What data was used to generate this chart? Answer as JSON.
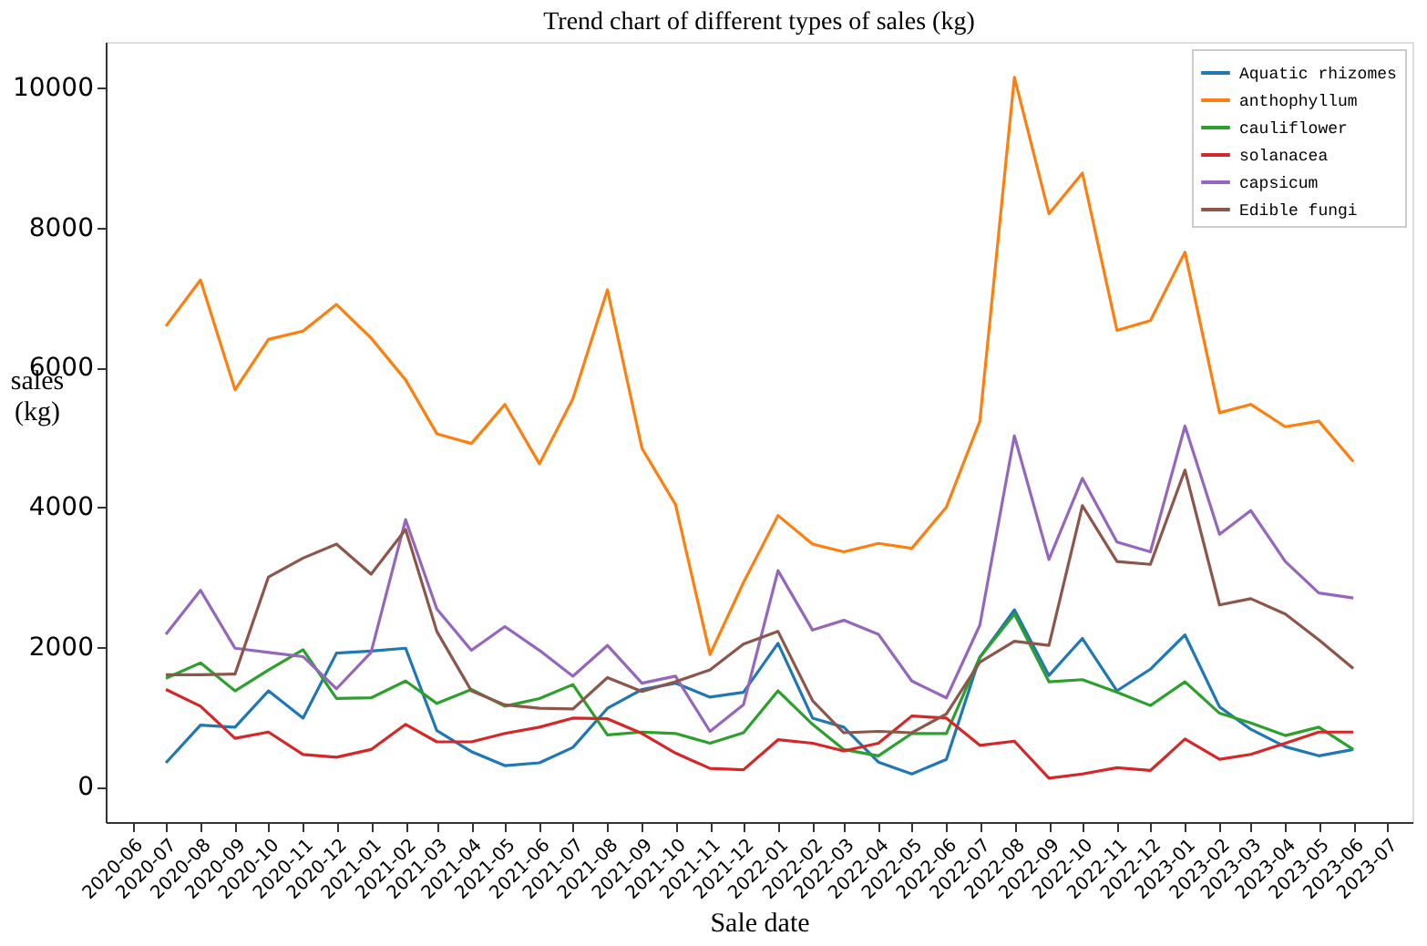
{
  "chart_data": {
    "type": "line",
    "title": "Trend chart of different types of sales (kg)",
    "xlabel": "Sale date",
    "ylabel": "sales\n(kg)",
    "x": [
      "2020-07",
      "2020-08",
      "2020-09",
      "2020-10",
      "2020-11",
      "2020-12",
      "2021-01",
      "2021-02",
      "2021-03",
      "2021-04",
      "2021-05",
      "2021-06",
      "2021-07",
      "2021-08",
      "2021-09",
      "2021-10",
      "2021-11",
      "2021-12",
      "2022-01",
      "2022-02",
      "2022-03",
      "2022-04",
      "2022-05",
      "2022-06",
      "2022-07",
      "2022-08",
      "2022-09",
      "2022-10",
      "2022-11",
      "2022-12",
      "2023-01",
      "2023-02",
      "2023-03",
      "2023-04",
      "2023-05",
      "2023-06"
    ],
    "xlim": [
      "2020-05-08",
      "2023-07-24"
    ],
    "xticks": [
      "2020-06",
      "2020-07",
      "2020-08",
      "2020-09",
      "2020-10",
      "2020-11",
      "2020-12",
      "2021-01",
      "2021-02",
      "2021-03",
      "2021-04",
      "2021-05",
      "2021-06",
      "2021-07",
      "2021-08",
      "2021-09",
      "2021-10",
      "2021-11",
      "2021-12",
      "2022-01",
      "2022-02",
      "2022-03",
      "2022-04",
      "2022-05",
      "2022-06",
      "2022-07",
      "2022-08",
      "2022-09",
      "2022-10",
      "2022-11",
      "2022-12",
      "2023-01",
      "2023-02",
      "2023-03",
      "2023-04",
      "2023-05",
      "2023-06",
      "2023-07"
    ],
    "ylim": [
      -508,
      10658
    ],
    "yticks": [
      0,
      2000,
      4000,
      6000,
      8000,
      10000
    ],
    "grid": false,
    "legend": "top right",
    "marker": "none",
    "line_style": "solid",
    "series": [
      {
        "name": "Aquatic rhizomes",
        "color": "#1f77b4",
        "values": [
          340,
          880,
          850,
          1370,
          980,
          1910,
          1940,
          1980,
          800,
          500,
          300,
          340,
          560,
          1120,
          1390,
          1480,
          1280,
          1350,
          2050,
          980,
          850,
          350,
          180,
          390,
          1850,
          2530,
          1590,
          2120,
          1370,
          1680,
          2170,
          1140,
          820,
          570,
          440,
          530
        ]
      },
      {
        "name": "anthophyllum",
        "color": "#ff7f0e",
        "values": [
          6590,
          7250,
          5680,
          6400,
          6520,
          6900,
          6420,
          5820,
          5050,
          4910,
          5470,
          4620,
          5550,
          7110,
          4840,
          4040,
          1890,
          2920,
          3880,
          3470,
          3360,
          3480,
          3410,
          4000,
          5230,
          10150,
          8200,
          8780,
          6530,
          6670,
          7650,
          5350,
          5470,
          5150,
          5230,
          4650
        ]
      },
      {
        "name": "cauliflower",
        "color": "#2ca02c",
        "values": [
          1550,
          1770,
          1370,
          1670,
          1960,
          1260,
          1270,
          1510,
          1190,
          1390,
          1150,
          1260,
          1460,
          740,
          780,
          760,
          620,
          770,
          1370,
          890,
          530,
          440,
          760,
          760,
          1850,
          2470,
          1500,
          1530,
          1350,
          1160,
          1500,
          1050,
          910,
          730,
          850,
          530
        ]
      },
      {
        "name": "solanacea",
        "color": "#d62728",
        "values": [
          1390,
          1150,
          690,
          780,
          460,
          420,
          530,
          890,
          640,
          640,
          760,
          850,
          980,
          970,
          760,
          480,
          260,
          240,
          670,
          620,
          510,
          620,
          1010,
          980,
          590,
          650,
          120,
          180,
          270,
          230,
          680,
          390,
          460,
          620,
          780,
          780
        ]
      },
      {
        "name": "capsicum",
        "color": "#9467bd",
        "values": [
          2180,
          2810,
          1980,
          1920,
          1860,
          1400,
          1920,
          3820,
          2540,
          1950,
          2290,
          1950,
          1580,
          2020,
          1480,
          1580,
          790,
          1170,
          3090,
          2240,
          2380,
          2180,
          1510,
          1270,
          2310,
          5020,
          3250,
          4410,
          3500,
          3360,
          5160,
          3610,
          3950,
          3220,
          2770,
          2700
        ]
      },
      {
        "name": "Edible fungi",
        "color": "#8c564b",
        "values": [
          1600,
          1600,
          1610,
          3000,
          3270,
          3470,
          3040,
          3680,
          2220,
          1370,
          1170,
          1120,
          1110,
          1560,
          1360,
          1500,
          1670,
          2040,
          2220,
          1230,
          770,
          790,
          770,
          1040,
          1780,
          2080,
          2020,
          4020,
          3220,
          3180,
          4530,
          2600,
          2690,
          2470,
          2100,
          1690
        ]
      }
    ]
  }
}
